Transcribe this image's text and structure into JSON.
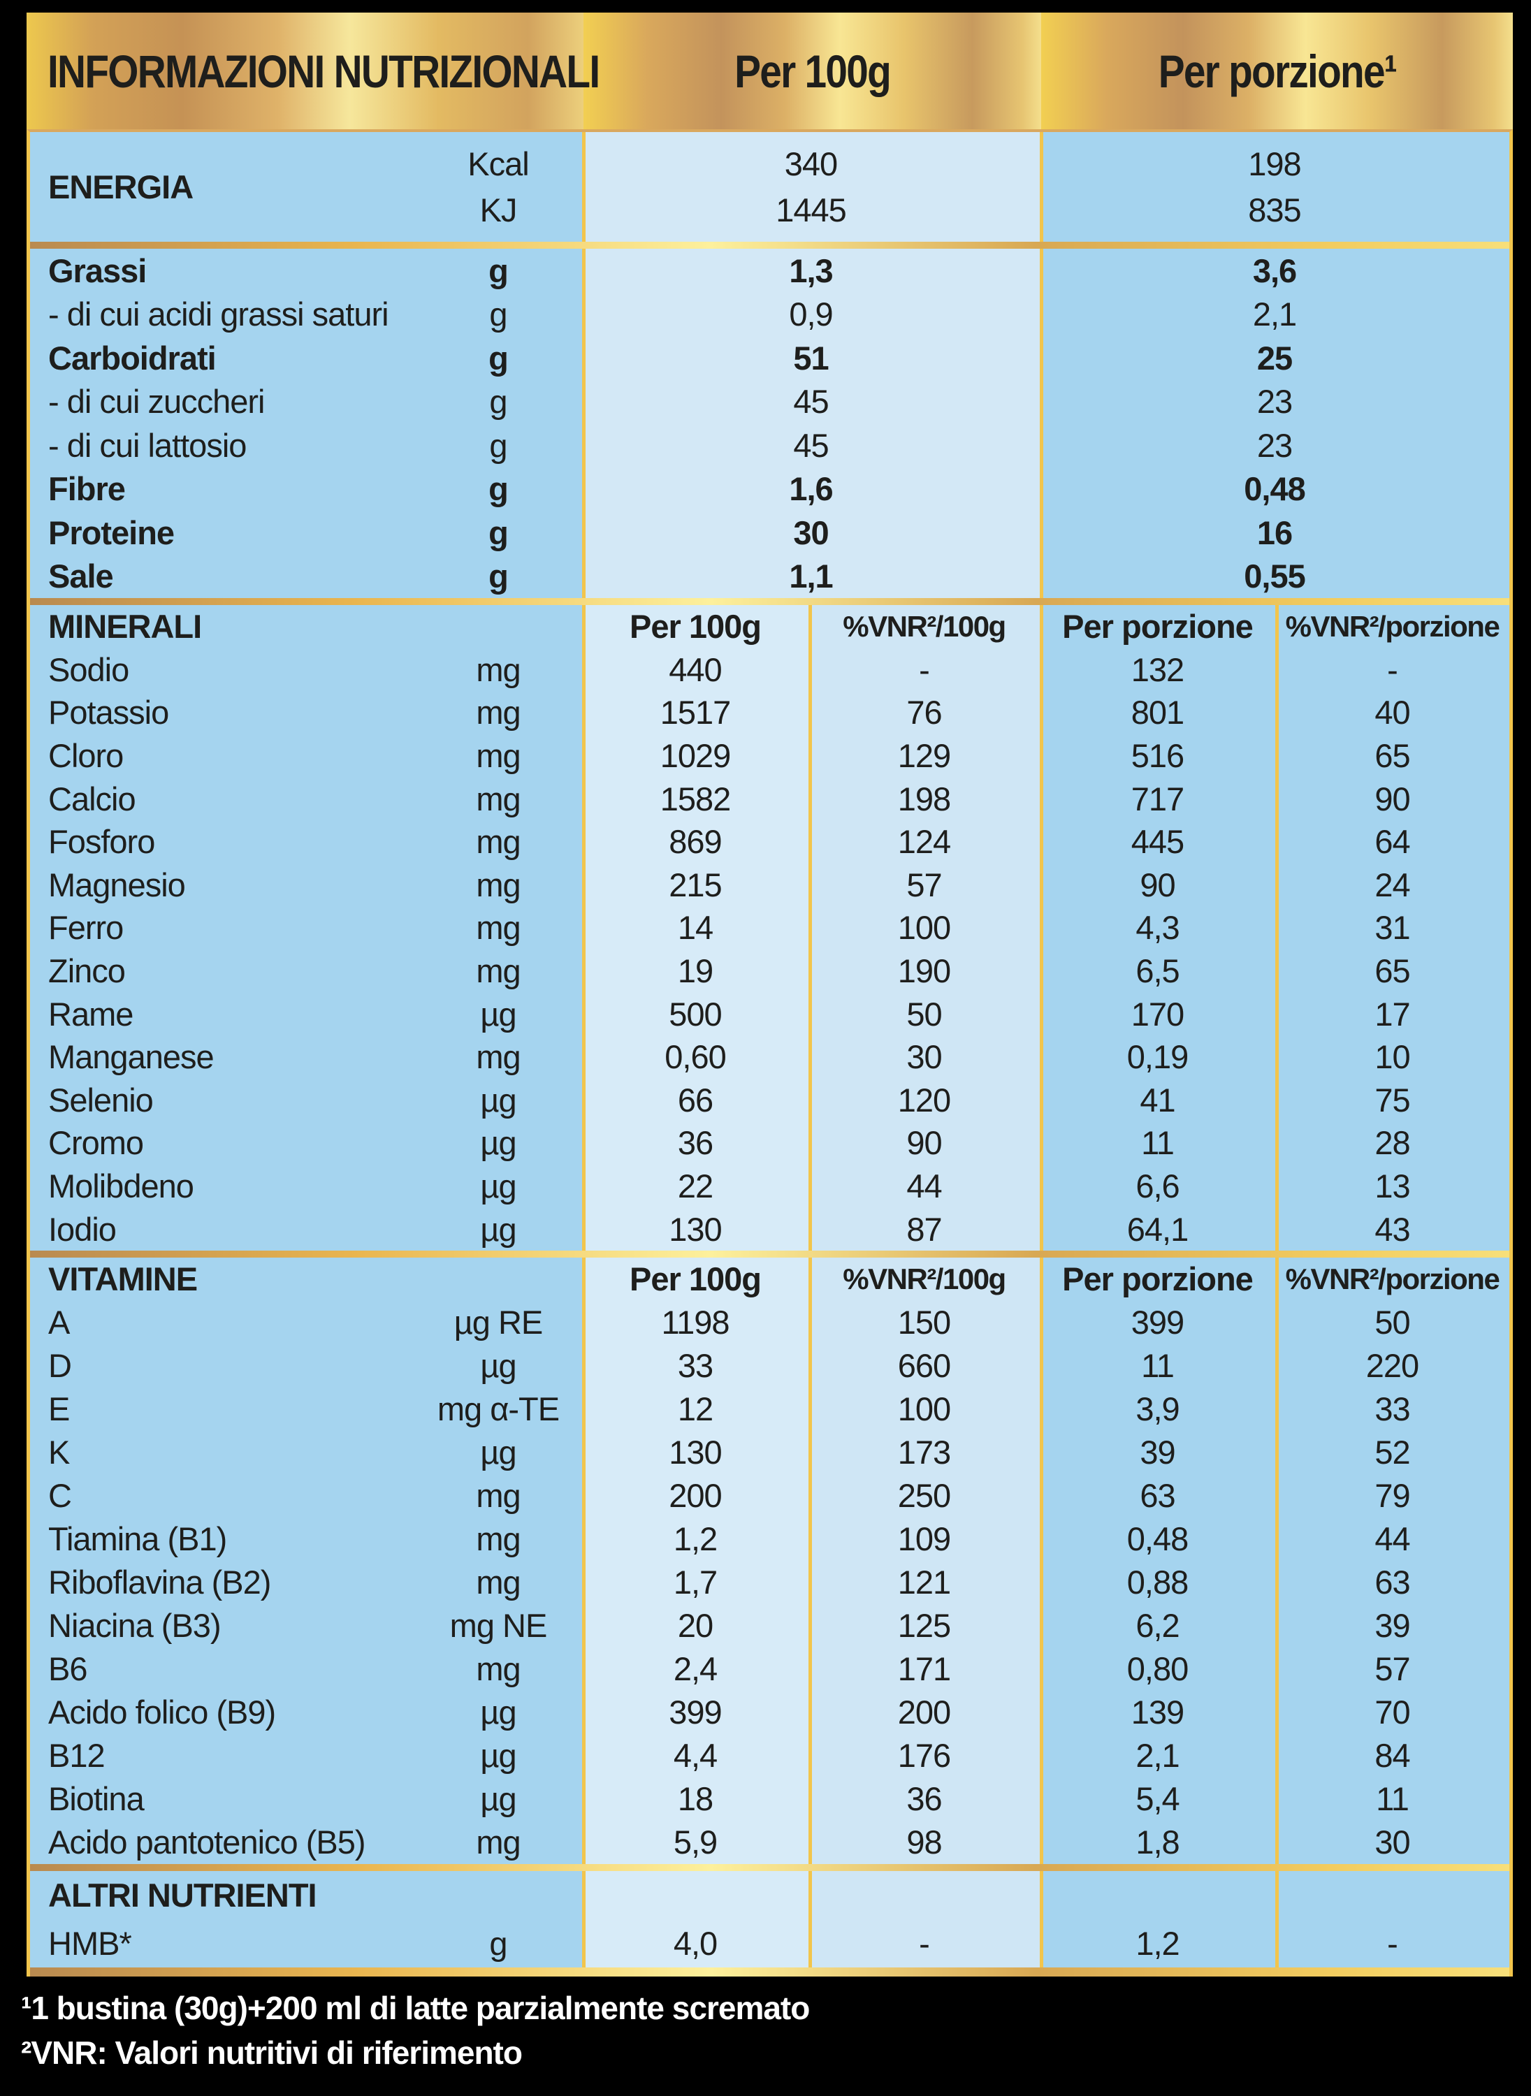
{
  "header": {
    "title": "INFORMAZIONI NUTRIZIONALI",
    "col_100g": "Per 100g",
    "col_porzione": "Per porzione¹"
  },
  "energia": {
    "label": "ENERGIA",
    "units": [
      "Kcal",
      "KJ"
    ],
    "per100g": [
      "340",
      "1445"
    ],
    "porzione": [
      "198",
      "835"
    ]
  },
  "macros": {
    "rows": [
      {
        "label": "Grassi",
        "unit": "g",
        "per100g": "1,3",
        "porzione": "3,6",
        "bold": true
      },
      {
        "label": "- di cui acidi grassi saturi",
        "unit": "g",
        "per100g": "0,9",
        "porzione": "2,1",
        "bold": false
      },
      {
        "label": "Carboidrati",
        "unit": "g",
        "per100g": "51",
        "porzione": "25",
        "bold": true
      },
      {
        "label": "- di cui zuccheri",
        "unit": "g",
        "per100g": "45",
        "porzione": "23",
        "bold": false
      },
      {
        "label": "- di cui lattosio",
        "unit": "g",
        "per100g": "45",
        "porzione": "23",
        "bold": false
      },
      {
        "label": "Fibre",
        "unit": "g",
        "per100g": "1,6",
        "porzione": "0,48",
        "bold": true
      },
      {
        "label": "Proteine",
        "unit": "g",
        "per100g": "30",
        "porzione": "16",
        "bold": true
      },
      {
        "label": "Sale",
        "unit": "g",
        "per100g": "1,1",
        "porzione": "0,55",
        "bold": true
      }
    ]
  },
  "minerali": {
    "title": "MINERALI",
    "col_per100g": "Per 100g",
    "col_vnr100g": "%VNR²/100g",
    "col_porzione": "Per porzione",
    "col_vnrporzione": "%VNR²/porzione",
    "rows": [
      {
        "label": "Sodio",
        "unit": "mg",
        "per100g": "440",
        "vnr100g": "-",
        "porzione": "132",
        "vnrporz": "-"
      },
      {
        "label": "Potassio",
        "unit": "mg",
        "per100g": "1517",
        "vnr100g": "76",
        "porzione": "801",
        "vnrporz": "40"
      },
      {
        "label": "Cloro",
        "unit": "mg",
        "per100g": "1029",
        "vnr100g": "129",
        "porzione": "516",
        "vnrporz": "65"
      },
      {
        "label": "Calcio",
        "unit": "mg",
        "per100g": "1582",
        "vnr100g": "198",
        "porzione": "717",
        "vnrporz": "90"
      },
      {
        "label": "Fosforo",
        "unit": "mg",
        "per100g": "869",
        "vnr100g": "124",
        "porzione": "445",
        "vnrporz": "64"
      },
      {
        "label": "Magnesio",
        "unit": "mg",
        "per100g": "215",
        "vnr100g": "57",
        "porzione": "90",
        "vnrporz": "24"
      },
      {
        "label": "Ferro",
        "unit": "mg",
        "per100g": "14",
        "vnr100g": "100",
        "porzione": "4,3",
        "vnrporz": "31"
      },
      {
        "label": "Zinco",
        "unit": "mg",
        "per100g": "19",
        "vnr100g": "190",
        "porzione": "6,5",
        "vnrporz": "65"
      },
      {
        "label": "Rame",
        "unit": "µg",
        "per100g": "500",
        "vnr100g": "50",
        "porzione": "170",
        "vnrporz": "17"
      },
      {
        "label": "Manganese",
        "unit": "mg",
        "per100g": "0,60",
        "vnr100g": "30",
        "porzione": "0,19",
        "vnrporz": "10"
      },
      {
        "label": "Selenio",
        "unit": "µg",
        "per100g": "66",
        "vnr100g": "120",
        "porzione": "41",
        "vnrporz": "75"
      },
      {
        "label": "Cromo",
        "unit": "µg",
        "per100g": "36",
        "vnr100g": "90",
        "porzione": "11",
        "vnrporz": "28"
      },
      {
        "label": "Molibdeno",
        "unit": "µg",
        "per100g": "22",
        "vnr100g": "44",
        "porzione": "6,6",
        "vnrporz": "13"
      },
      {
        "label": "Iodio",
        "unit": "µg",
        "per100g": "130",
        "vnr100g": "87",
        "porzione": "64,1",
        "vnrporz": "43"
      }
    ]
  },
  "vitamine": {
    "title": "VITAMINE",
    "col_per100g": "Per 100g",
    "col_vnr100g": "%VNR²/100g",
    "col_porzione": "Per porzione",
    "col_vnrporzione": "%VNR²/porzione",
    "rows": [
      {
        "label": "A",
        "unit": "µg RE",
        "per100g": "1198",
        "vnr100g": "150",
        "porzione": "399",
        "vnrporz": "50"
      },
      {
        "label": "D",
        "unit": "µg",
        "per100g": "33",
        "vnr100g": "660",
        "porzione": "11",
        "vnrporz": "220"
      },
      {
        "label": "E",
        "unit": "mg α-TE",
        "per100g": "12",
        "vnr100g": "100",
        "porzione": "3,9",
        "vnrporz": "33"
      },
      {
        "label": "K",
        "unit": "µg",
        "per100g": "130",
        "vnr100g": "173",
        "porzione": "39",
        "vnrporz": "52"
      },
      {
        "label": "C",
        "unit": "mg",
        "per100g": "200",
        "vnr100g": "250",
        "porzione": "63",
        "vnrporz": "79"
      },
      {
        "label": "Tiamina (B1)",
        "unit": "mg",
        "per100g": "1,2",
        "vnr100g": "109",
        "porzione": "0,48",
        "vnrporz": "44"
      },
      {
        "label": "Riboflavina (B2)",
        "unit": "mg",
        "per100g": "1,7",
        "vnr100g": "121",
        "porzione": "0,88",
        "vnrporz": "63"
      },
      {
        "label": "Niacina (B3)",
        "unit": "mg NE",
        "per100g": "20",
        "vnr100g": "125",
        "porzione": "6,2",
        "vnrporz": "39"
      },
      {
        "label": "B6",
        "unit": "mg",
        "per100g": "2,4",
        "vnr100g": "171",
        "porzione": "0,80",
        "vnrporz": "57"
      },
      {
        "label": "Acido folico (B9)",
        "unit": "µg",
        "per100g": "399",
        "vnr100g": "200",
        "porzione": "139",
        "vnrporz": "70"
      },
      {
        "label": "B12",
        "unit": "µg",
        "per100g": "4,4",
        "vnr100g": "176",
        "porzione": "2,1",
        "vnrporz": "84"
      },
      {
        "label": "Biotina",
        "unit": "µg",
        "per100g": "18",
        "vnr100g": "36",
        "porzione": "5,4",
        "vnrporz": "11"
      },
      {
        "label": "Acido pantotenico (B5)",
        "unit": "mg",
        "per100g": "5,9",
        "vnr100g": "98",
        "porzione": "1,8",
        "vnrporz": "30"
      }
    ]
  },
  "altri": {
    "title": "ALTRI NUTRIENTI",
    "rows": [
      {
        "label": "HMB*",
        "unit": "g",
        "per100g": "4,0",
        "vnr100g": "-",
        "porzione": "1,2",
        "vnrporz": "-"
      }
    ]
  },
  "footnotes": [
    "¹1 bustina (30g)+200 ml di latte parzialmente scremato",
    "²VNR: Valori nutritivi di riferimento"
  ]
}
